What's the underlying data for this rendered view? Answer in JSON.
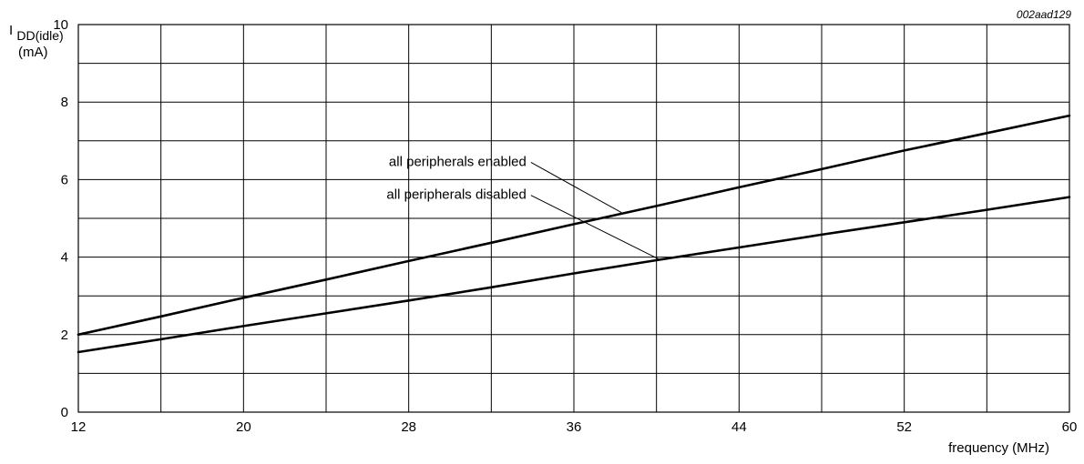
{
  "figure_id": "002aad129",
  "chart_data": {
    "type": "line",
    "xlabel": "frequency (MHz)",
    "ylabel": {
      "main": "I",
      "subscript": "DD(idle)",
      "unit": "(mA)"
    },
    "xlim": [
      12,
      60
    ],
    "ylim": [
      0,
      10
    ],
    "x_ticks": [
      12,
      20,
      28,
      36,
      44,
      52,
      60
    ],
    "y_ticks": [
      0,
      2,
      4,
      6,
      8,
      10
    ],
    "x_gridlines": [
      12,
      16,
      20,
      24,
      28,
      32,
      36,
      40,
      44,
      48,
      52,
      56,
      60
    ],
    "y_gridlines": [
      0,
      1,
      2,
      3,
      4,
      5,
      6,
      7,
      8,
      9,
      10
    ],
    "grid": true,
    "series": [
      {
        "name": "all peripherals enabled",
        "x": [
          12,
          16,
          20,
          24,
          28,
          32,
          36,
          40,
          44,
          48,
          52,
          56,
          60
        ],
        "y": [
          2.0,
          2.47,
          2.95,
          3.42,
          3.9,
          4.37,
          4.85,
          5.32,
          5.8,
          6.27,
          6.75,
          7.2,
          7.65
        ]
      },
      {
        "name": "all peripherals disabled",
        "x": [
          12,
          16,
          20,
          24,
          28,
          32,
          36,
          40,
          44,
          48,
          52,
          56,
          60
        ],
        "y": [
          1.55,
          1.88,
          2.22,
          2.55,
          2.88,
          3.22,
          3.58,
          3.92,
          4.25,
          4.58,
          4.9,
          5.22,
          5.55
        ]
      }
    ],
    "annotations": [
      {
        "text": "all peripherals enabled",
        "series": 0,
        "label_at": {
          "x": 33.7,
          "y": 6.35
        },
        "points_to": {
          "x": 38.3,
          "y": 5.15
        }
      },
      {
        "text": "all peripherals disabled",
        "series": 1,
        "label_at": {
          "x": 33.7,
          "y": 5.5
        },
        "points_to": {
          "x": 40.1,
          "y": 3.95
        }
      }
    ]
  }
}
